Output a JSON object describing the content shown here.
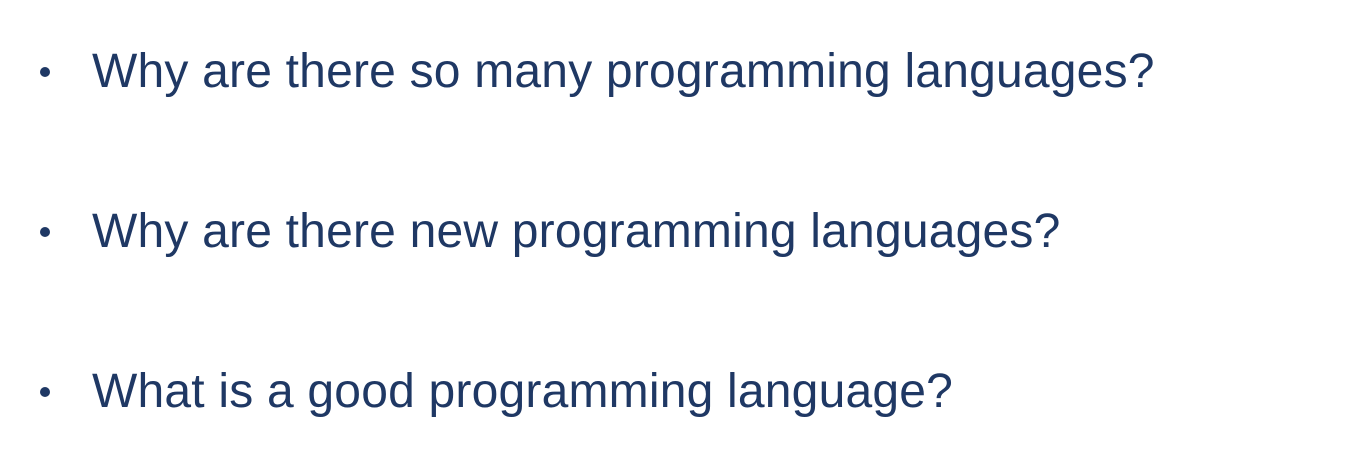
{
  "slide": {
    "bullets": [
      {
        "text": "Why are there so many programming languages?"
      },
      {
        "text": "Why are there new programming languages?"
      },
      {
        "text": "What is a good programming language?"
      }
    ],
    "colors": {
      "text": "#1f3864",
      "background": "#ffffff"
    }
  }
}
